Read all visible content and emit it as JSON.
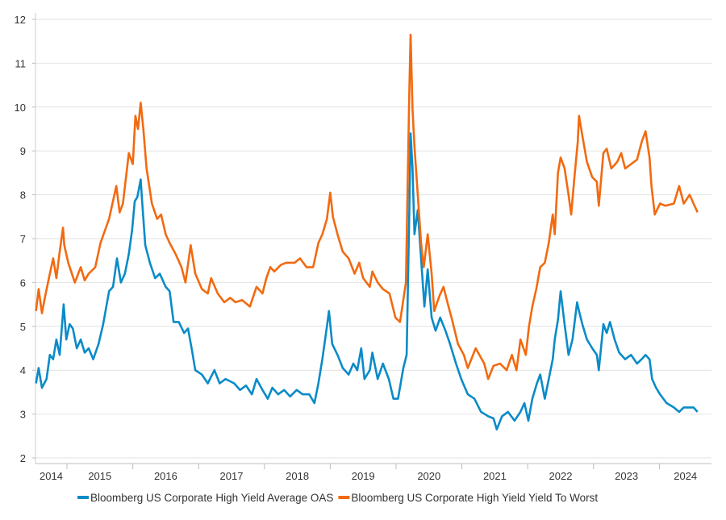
{
  "chart_data": {
    "type": "line",
    "title": "",
    "xlabel": "",
    "ylabel": "",
    "xlim": [
      2014.52,
      2024.8
    ],
    "ylim": [
      2,
      12
    ],
    "y_ticks": [
      2,
      3,
      4,
      5,
      6,
      7,
      8,
      9,
      10,
      11,
      12
    ],
    "x_tick_labels": [
      "2014",
      "2015",
      "2016",
      "2017",
      "2018",
      "2019",
      "2020",
      "2021",
      "2022",
      "2023",
      "2024"
    ],
    "grid": "horizontal",
    "legend_placement": "bottom",
    "series": [
      {
        "name": "Bloomberg US Corporate High Yield Average OAS",
        "color": "#0a8bc8",
        "points": [
          [
            2014.53,
            3.7
          ],
          [
            2014.57,
            4.05
          ],
          [
            2014.62,
            3.6
          ],
          [
            2014.69,
            3.8
          ],
          [
            2014.74,
            4.35
          ],
          [
            2014.79,
            4.25
          ],
          [
            2014.84,
            4.7
          ],
          [
            2014.89,
            4.35
          ],
          [
            2014.95,
            5.5
          ],
          [
            2014.99,
            4.7
          ],
          [
            2015.04,
            5.05
          ],
          [
            2015.09,
            4.95
          ],
          [
            2015.15,
            4.5
          ],
          [
            2015.21,
            4.7
          ],
          [
            2015.27,
            4.4
          ],
          [
            2015.33,
            4.5
          ],
          [
            2015.4,
            4.25
          ],
          [
            2015.48,
            4.6
          ],
          [
            2015.55,
            5.05
          ],
          [
            2015.64,
            5.8
          ],
          [
            2015.7,
            5.9
          ],
          [
            2015.76,
            6.55
          ],
          [
            2015.82,
            6.0
          ],
          [
            2015.88,
            6.2
          ],
          [
            2015.94,
            6.65
          ],
          [
            2015.99,
            7.2
          ],
          [
            2016.03,
            7.85
          ],
          [
            2016.07,
            7.95
          ],
          [
            2016.12,
            8.35
          ],
          [
            2016.14,
            7.9
          ],
          [
            2016.19,
            6.85
          ],
          [
            2016.26,
            6.45
          ],
          [
            2016.34,
            6.1
          ],
          [
            2016.41,
            6.2
          ],
          [
            2016.5,
            5.9
          ],
          [
            2016.56,
            5.8
          ],
          [
            2016.62,
            5.1
          ],
          [
            2016.7,
            5.1
          ],
          [
            2016.78,
            4.85
          ],
          [
            2016.84,
            4.95
          ],
          [
            2016.9,
            4.45
          ],
          [
            2016.95,
            4.0
          ],
          [
            2017.05,
            3.9
          ],
          [
            2017.14,
            3.7
          ],
          [
            2017.24,
            4.0
          ],
          [
            2017.32,
            3.7
          ],
          [
            2017.41,
            3.8
          ],
          [
            2017.54,
            3.7
          ],
          [
            2017.63,
            3.55
          ],
          [
            2017.72,
            3.65
          ],
          [
            2017.81,
            3.45
          ],
          [
            2017.88,
            3.8
          ],
          [
            2017.97,
            3.55
          ],
          [
            2018.05,
            3.35
          ],
          [
            2018.12,
            3.6
          ],
          [
            2018.21,
            3.45
          ],
          [
            2018.3,
            3.55
          ],
          [
            2018.39,
            3.4
          ],
          [
            2018.49,
            3.55
          ],
          [
            2018.58,
            3.45
          ],
          [
            2018.68,
            3.45
          ],
          [
            2018.76,
            3.25
          ],
          [
            2018.82,
            3.7
          ],
          [
            2018.88,
            4.25
          ],
          [
            2018.95,
            5.0
          ],
          [
            2018.98,
            5.35
          ],
          [
            2019.03,
            4.6
          ],
          [
            2019.11,
            4.35
          ],
          [
            2019.19,
            4.05
          ],
          [
            2019.28,
            3.9
          ],
          [
            2019.35,
            4.15
          ],
          [
            2019.41,
            4.0
          ],
          [
            2019.47,
            4.5
          ],
          [
            2019.52,
            3.8
          ],
          [
            2019.6,
            4.0
          ],
          [
            2019.64,
            4.4
          ],
          [
            2019.72,
            3.8
          ],
          [
            2019.8,
            4.15
          ],
          [
            2019.89,
            3.8
          ],
          [
            2019.96,
            3.35
          ],
          [
            2020.03,
            3.35
          ],
          [
            2020.11,
            4.05
          ],
          [
            2020.16,
            4.35
          ],
          [
            2020.2,
            7.5
          ],
          [
            2020.22,
            9.4
          ],
          [
            2020.25,
            8.6
          ],
          [
            2020.28,
            7.1
          ],
          [
            2020.33,
            7.65
          ],
          [
            2020.38,
            6.55
          ],
          [
            2020.43,
            5.45
          ],
          [
            2020.48,
            6.3
          ],
          [
            2020.54,
            5.2
          ],
          [
            2020.6,
            4.9
          ],
          [
            2020.67,
            5.2
          ],
          [
            2020.75,
            4.9
          ],
          [
            2020.82,
            4.6
          ],
          [
            2020.91,
            4.15
          ],
          [
            2020.99,
            3.8
          ],
          [
            2021.09,
            3.45
          ],
          [
            2021.19,
            3.35
          ],
          [
            2021.29,
            3.05
          ],
          [
            2021.4,
            2.95
          ],
          [
            2021.48,
            2.9
          ],
          [
            2021.53,
            2.65
          ],
          [
            2021.61,
            2.95
          ],
          [
            2021.7,
            3.05
          ],
          [
            2021.8,
            2.85
          ],
          [
            2021.89,
            3.05
          ],
          [
            2021.95,
            3.25
          ],
          [
            2022.01,
            2.85
          ],
          [
            2022.07,
            3.35
          ],
          [
            2022.14,
            3.7
          ],
          [
            2022.19,
            3.9
          ],
          [
            2022.26,
            3.35
          ],
          [
            2022.32,
            3.8
          ],
          [
            2022.38,
            4.25
          ],
          [
            2022.41,
            4.7
          ],
          [
            2022.46,
            5.15
          ],
          [
            2022.5,
            5.8
          ],
          [
            2022.56,
            5.05
          ],
          [
            2022.62,
            4.35
          ],
          [
            2022.68,
            4.7
          ],
          [
            2022.75,
            5.55
          ],
          [
            2022.78,
            5.35
          ],
          [
            2022.83,
            5.05
          ],
          [
            2022.9,
            4.7
          ],
          [
            2022.98,
            4.5
          ],
          [
            2023.05,
            4.35
          ],
          [
            2023.08,
            4.0
          ],
          [
            2023.15,
            5.05
          ],
          [
            2023.2,
            4.85
          ],
          [
            2023.25,
            5.1
          ],
          [
            2023.32,
            4.7
          ],
          [
            2023.39,
            4.4
          ],
          [
            2023.48,
            4.25
          ],
          [
            2023.57,
            4.35
          ],
          [
            2023.66,
            4.15
          ],
          [
            2023.73,
            4.25
          ],
          [
            2023.79,
            4.35
          ],
          [
            2023.85,
            4.25
          ],
          [
            2023.89,
            3.8
          ],
          [
            2023.95,
            3.6
          ],
          [
            2024.01,
            3.45
          ],
          [
            2024.11,
            3.25
          ],
          [
            2024.22,
            3.15
          ],
          [
            2024.3,
            3.05
          ],
          [
            2024.37,
            3.15
          ],
          [
            2024.46,
            3.15
          ],
          [
            2024.52,
            3.15
          ],
          [
            2024.58,
            3.05
          ]
        ]
      },
      {
        "name": "Bloomberg US Corporate High Yield Yield To Worst",
        "color": "#f26a10",
        "points": [
          [
            2014.53,
            5.35
          ],
          [
            2014.57,
            5.85
          ],
          [
            2014.62,
            5.3
          ],
          [
            2014.67,
            5.7
          ],
          [
            2014.74,
            6.2
          ],
          [
            2014.79,
            6.55
          ],
          [
            2014.84,
            6.1
          ],
          [
            2014.89,
            6.7
          ],
          [
            2014.94,
            7.25
          ],
          [
            2014.96,
            6.85
          ],
          [
            2015.02,
            6.45
          ],
          [
            2015.12,
            6.0
          ],
          [
            2015.21,
            6.35
          ],
          [
            2015.27,
            6.05
          ],
          [
            2015.33,
            6.2
          ],
          [
            2015.43,
            6.35
          ],
          [
            2015.51,
            6.9
          ],
          [
            2015.64,
            7.45
          ],
          [
            2015.75,
            8.2
          ],
          [
            2015.8,
            7.6
          ],
          [
            2015.85,
            7.8
          ],
          [
            2015.94,
            8.95
          ],
          [
            2016.0,
            8.7
          ],
          [
            2016.04,
            9.8
          ],
          [
            2016.08,
            9.5
          ],
          [
            2016.12,
            10.1
          ],
          [
            2016.16,
            9.5
          ],
          [
            2016.21,
            8.6
          ],
          [
            2016.29,
            7.8
          ],
          [
            2016.37,
            7.45
          ],
          [
            2016.43,
            7.55
          ],
          [
            2016.5,
            7.1
          ],
          [
            2016.56,
            6.9
          ],
          [
            2016.65,
            6.65
          ],
          [
            2016.74,
            6.35
          ],
          [
            2016.8,
            6.0
          ],
          [
            2016.88,
            6.85
          ],
          [
            2016.95,
            6.2
          ],
          [
            2017.05,
            5.85
          ],
          [
            2017.14,
            5.75
          ],
          [
            2017.19,
            6.1
          ],
          [
            2017.29,
            5.75
          ],
          [
            2017.39,
            5.55
          ],
          [
            2017.48,
            5.65
          ],
          [
            2017.56,
            5.55
          ],
          [
            2017.66,
            5.6
          ],
          [
            2017.78,
            5.45
          ],
          [
            2017.88,
            5.9
          ],
          [
            2017.97,
            5.75
          ],
          [
            2018.03,
            6.1
          ],
          [
            2018.09,
            6.35
          ],
          [
            2018.15,
            6.25
          ],
          [
            2018.25,
            6.4
          ],
          [
            2018.33,
            6.45
          ],
          [
            2018.46,
            6.45
          ],
          [
            2018.54,
            6.55
          ],
          [
            2018.64,
            6.35
          ],
          [
            2018.74,
            6.35
          ],
          [
            2018.82,
            6.9
          ],
          [
            2018.88,
            7.1
          ],
          [
            2018.95,
            7.45
          ],
          [
            2019.0,
            8.05
          ],
          [
            2019.04,
            7.5
          ],
          [
            2019.11,
            7.1
          ],
          [
            2019.19,
            6.7
          ],
          [
            2019.28,
            6.55
          ],
          [
            2019.37,
            6.2
          ],
          [
            2019.44,
            6.45
          ],
          [
            2019.5,
            6.1
          ],
          [
            2019.6,
            5.9
          ],
          [
            2019.64,
            6.25
          ],
          [
            2019.72,
            6.0
          ],
          [
            2019.8,
            5.85
          ],
          [
            2019.9,
            5.75
          ],
          [
            2019.99,
            5.2
          ],
          [
            2020.06,
            5.1
          ],
          [
            2020.15,
            6.0
          ],
          [
            2020.2,
            10.25
          ],
          [
            2020.22,
            11.65
          ],
          [
            2020.25,
            9.95
          ],
          [
            2020.28,
            9.1
          ],
          [
            2020.33,
            8.0
          ],
          [
            2020.38,
            6.9
          ],
          [
            2020.42,
            6.35
          ],
          [
            2020.48,
            7.1
          ],
          [
            2020.54,
            6.2
          ],
          [
            2020.58,
            5.35
          ],
          [
            2020.66,
            5.7
          ],
          [
            2020.72,
            5.9
          ],
          [
            2020.78,
            5.55
          ],
          [
            2020.85,
            5.15
          ],
          [
            2020.94,
            4.6
          ],
          [
            2021.03,
            4.35
          ],
          [
            2021.09,
            4.05
          ],
          [
            2021.21,
            4.5
          ],
          [
            2021.34,
            4.15
          ],
          [
            2021.4,
            3.8
          ],
          [
            2021.48,
            4.1
          ],
          [
            2021.58,
            4.15
          ],
          [
            2021.68,
            4.0
          ],
          [
            2021.76,
            4.35
          ],
          [
            2021.83,
            4.0
          ],
          [
            2021.89,
            4.7
          ],
          [
            2021.97,
            4.35
          ],
          [
            2022.02,
            5.0
          ],
          [
            2022.07,
            5.45
          ],
          [
            2022.13,
            5.85
          ],
          [
            2022.19,
            6.35
          ],
          [
            2022.26,
            6.45
          ],
          [
            2022.32,
            6.9
          ],
          [
            2022.38,
            7.55
          ],
          [
            2022.41,
            7.1
          ],
          [
            2022.46,
            8.5
          ],
          [
            2022.5,
            8.85
          ],
          [
            2022.56,
            8.6
          ],
          [
            2022.62,
            8.0
          ],
          [
            2022.66,
            7.55
          ],
          [
            2022.71,
            8.4
          ],
          [
            2022.76,
            9.2
          ],
          [
            2022.78,
            9.8
          ],
          [
            2022.83,
            9.35
          ],
          [
            2022.9,
            8.75
          ],
          [
            2022.98,
            8.4
          ],
          [
            2023.05,
            8.3
          ],
          [
            2023.08,
            7.75
          ],
          [
            2023.15,
            8.95
          ],
          [
            2023.2,
            9.05
          ],
          [
            2023.27,
            8.6
          ],
          [
            2023.36,
            8.75
          ],
          [
            2023.42,
            8.95
          ],
          [
            2023.48,
            8.6
          ],
          [
            2023.57,
            8.7
          ],
          [
            2023.66,
            8.8
          ],
          [
            2023.73,
            9.2
          ],
          [
            2023.79,
            9.45
          ],
          [
            2023.85,
            8.85
          ],
          [
            2023.88,
            8.2
          ],
          [
            2023.93,
            7.55
          ],
          [
            2024.01,
            7.8
          ],
          [
            2024.09,
            7.75
          ],
          [
            2024.22,
            7.8
          ],
          [
            2024.3,
            8.2
          ],
          [
            2024.37,
            7.8
          ],
          [
            2024.46,
            8.0
          ],
          [
            2024.52,
            7.8
          ],
          [
            2024.58,
            7.6
          ]
        ]
      }
    ]
  }
}
